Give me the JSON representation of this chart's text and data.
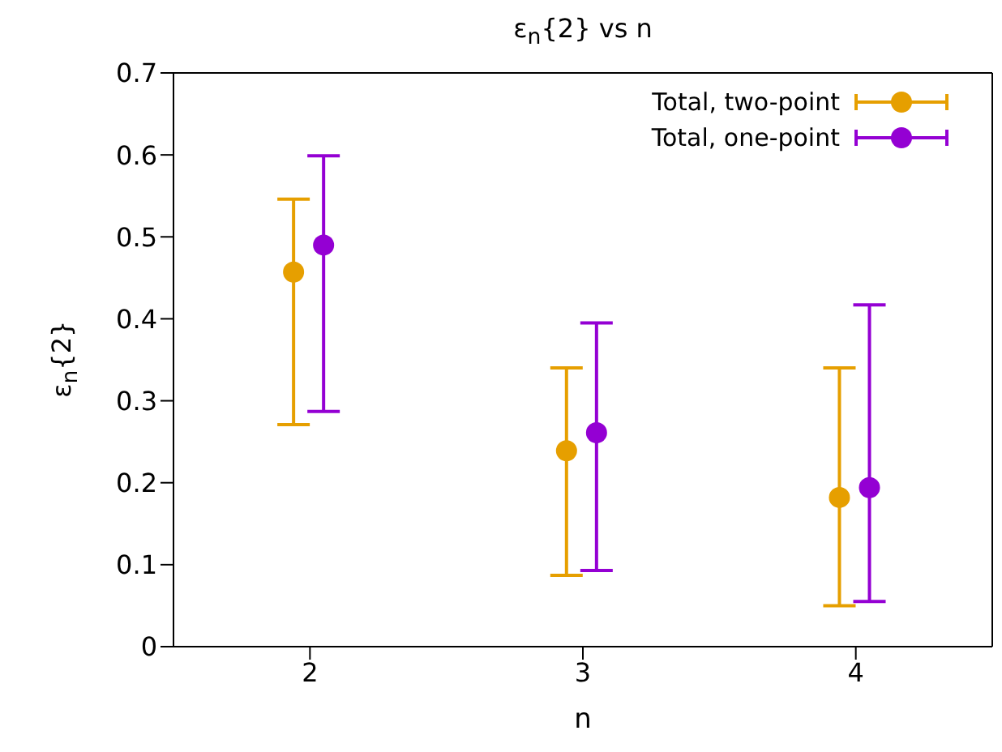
{
  "chart_data": {
    "type": "scatter",
    "title": "ε$_{n}${2} vs n",
    "xlabel": "n",
    "ylabel": "ε$_{n}${2}",
    "xlim": [
      1.5,
      4.5
    ],
    "xticks": [
      2,
      3,
      4
    ],
    "ylim": [
      0,
      0.7
    ],
    "yticks": [
      0,
      0.1,
      0.2,
      0.3,
      0.4,
      0.5,
      0.6,
      0.7
    ],
    "grid": false,
    "legend": "top right",
    "marker": "circle",
    "series": [
      {
        "name": "Total, two-point",
        "color": "#e69f00",
        "x": [
          1.94,
          2.94,
          3.94
        ],
        "values": [
          0.457,
          0.239,
          0.182
        ],
        "errors": [
          [
            0.271,
            0.546
          ],
          [
            0.087,
            0.34
          ],
          [
            0.05,
            0.34
          ]
        ]
      },
      {
        "name": "Total, one-point",
        "color": "#9400d3",
        "x": [
          2.05,
          3.05,
          4.05
        ],
        "values": [
          0.49,
          0.261,
          0.194
        ],
        "errors": [
          [
            0.287,
            0.599
          ],
          [
            0.093,
            0.395
          ],
          [
            0.055,
            0.417
          ]
        ]
      }
    ]
  }
}
